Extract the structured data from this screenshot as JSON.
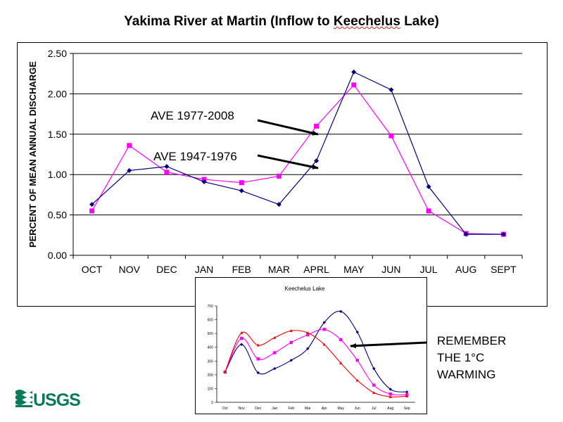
{
  "title": {
    "prefix": "Yakima River at Martin (Inflow to ",
    "squiggle": "Keechelus",
    "suffix": " Lake)"
  },
  "annotations": {
    "ave_recent": "AVE 1977-2008",
    "ave_early": "AVE 1947-1976",
    "remember": [
      "REMEMBER",
      "THE 1°C",
      "WARMING"
    ]
  },
  "logo_text": "USGS",
  "colors": {
    "navy": "#000080",
    "magenta": "#ff00ff",
    "red": "#ff0000",
    "gridline": "#000000"
  },
  "chart_data": [
    {
      "type": "line",
      "title": "Yakima River at Martin (Inflow to Keechelus Lake)",
      "xlabel": "",
      "ylabel": "PERCENT OF MEAN ANNUAL DISCHARGE",
      "categories": [
        "OCT",
        "NOV",
        "DEC",
        "JAN",
        "FEB",
        "MAR",
        "APRL",
        "MAY",
        "JUN",
        "JUL",
        "AUG",
        "SEPT"
      ],
      "yticks": [
        "0.00",
        "0.50",
        "1.00",
        "1.50",
        "2.00",
        "2.50"
      ],
      "ylim": [
        0,
        2.5
      ],
      "grid": true,
      "series": [
        {
          "name": "AVE 1947-1976",
          "color": "#000080",
          "marker": "diamond",
          "values": [
            0.63,
            1.05,
            1.1,
            0.91,
            0.8,
            0.63,
            1.17,
            2.27,
            2.05,
            0.85,
            0.26,
            0.26
          ]
        },
        {
          "name": "AVE 1977-2008",
          "color": "#ff00ff",
          "marker": "square",
          "values": [
            0.55,
            1.36,
            1.03,
            0.94,
            0.9,
            0.98,
            1.6,
            2.11,
            1.48,
            0.55,
            0.27,
            0.26
          ]
        }
      ]
    },
    {
      "type": "line",
      "title": "Keechelus Lake",
      "categories": [
        "Oct",
        "Nov",
        "Dec",
        "Jan",
        "Feb",
        "Mar",
        "Apr",
        "May",
        "Jun",
        "Jul",
        "Aug",
        "Sep"
      ],
      "yticks": [
        "0",
        "100",
        "200",
        "300",
        "400",
        "500",
        "600",
        "700"
      ],
      "ylim": [
        0,
        700
      ],
      "grid": false,
      "series": [
        {
          "color": "#000080",
          "marker": "diamond",
          "values": [
            220,
            420,
            215,
            245,
            305,
            390,
            580,
            660,
            510,
            245,
            95,
            75
          ]
        },
        {
          "color": "#ff00ff",
          "marker": "square",
          "values": [
            220,
            465,
            315,
            360,
            435,
            490,
            530,
            455,
            305,
            125,
            60,
            55
          ]
        },
        {
          "color": "#ff0000",
          "marker": "triangle",
          "values": [
            220,
            505,
            415,
            470,
            520,
            505,
            420,
            285,
            160,
            70,
            40,
            45
          ]
        }
      ]
    }
  ]
}
